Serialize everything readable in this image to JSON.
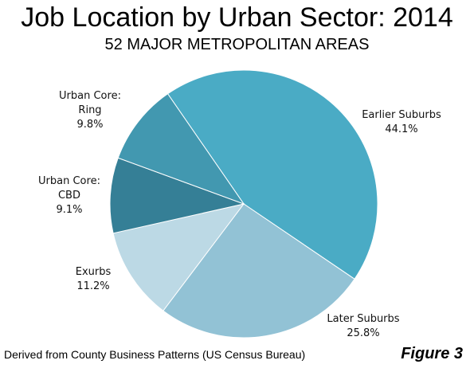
{
  "chart_data": {
    "type": "pie",
    "title": "Job Location by Urban Sector: 2014",
    "subtitle": "52 MAJOR METROPOLITAN AREAS",
    "slices": [
      {
        "label_lines": [
          "Earlier Suburbs"
        ],
        "value": 44.1,
        "value_label": "44.1%",
        "color": "#4aabc5"
      },
      {
        "label_lines": [
          "Later Suburbs"
        ],
        "value": 25.8,
        "value_label": "25.8%",
        "color": "#92c2d5"
      },
      {
        "label_lines": [
          "Exurbs"
        ],
        "value": 11.2,
        "value_label": "11.2%",
        "color": "#bcd9e5"
      },
      {
        "label_lines": [
          "Urban Core:",
          "CBD"
        ],
        "value": 9.1,
        "value_label": "9.1%",
        "color": "#357f96"
      },
      {
        "label_lines": [
          "Urban Core:",
          "Ring"
        ],
        "value": 9.8,
        "value_label": "9.8%",
        "color": "#4298b0"
      }
    ],
    "legend": "none"
  },
  "footer": {
    "source": "Derived from County Business Patterns (US Census Bureau)",
    "figure": "Figure 3"
  }
}
